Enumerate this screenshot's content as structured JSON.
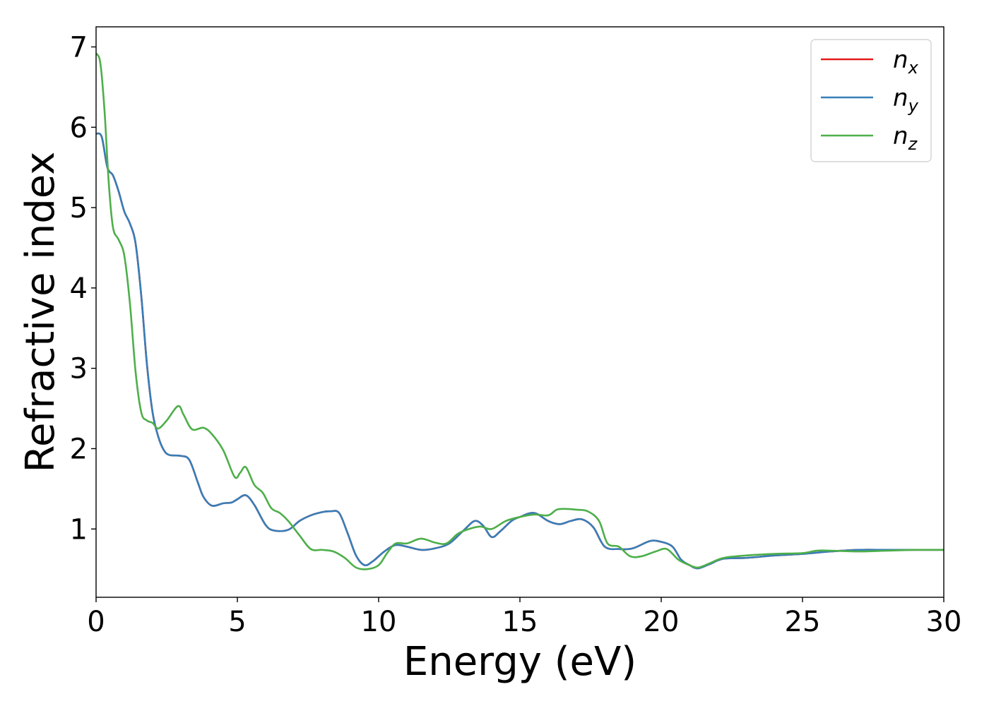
{
  "chart_data": {
    "type": "line",
    "title": "",
    "xlabel": "Energy (eV)",
    "ylabel": "Refractive index",
    "xlim": [
      0,
      30
    ],
    "ylim": [
      0.15,
      7.25
    ],
    "xticks": [
      0,
      5,
      10,
      15,
      20,
      25,
      30
    ],
    "yticks": [
      1,
      2,
      3,
      4,
      5,
      6,
      7
    ],
    "grid": false,
    "legend_position": "top-right",
    "series": [
      {
        "name": "n",
        "subscript": "x",
        "color": "#e41a1c",
        "x": [
          0,
          0.2,
          0.4,
          0.6,
          0.8,
          1.0,
          1.2,
          1.4,
          1.6,
          1.8,
          2.0,
          2.2,
          2.4,
          2.6,
          3.0,
          3.3,
          3.6,
          3.8,
          4.1,
          4.5,
          4.8,
          5.0,
          5.3,
          5.6,
          6.0,
          6.3,
          6.8,
          7.2,
          7.6,
          8.0,
          8.3,
          8.6,
          8.9,
          9.2,
          9.5,
          9.8,
          10.2,
          10.6,
          11.0,
          11.5,
          12.0,
          12.5,
          13.0,
          13.4,
          13.7,
          14.0,
          14.3,
          14.7,
          15.0,
          15.5,
          16.0,
          16.4,
          16.8,
          17.2,
          17.6,
          18.0,
          18.5,
          19.0,
          19.6,
          20.0,
          20.4,
          20.7,
          21.0,
          21.3,
          21.7,
          22.2,
          23.0,
          24.0,
          25.0,
          26.0,
          27.0,
          28.0,
          29.0,
          30.0
        ],
        "y": [
          5.92,
          5.88,
          5.5,
          5.4,
          5.2,
          4.95,
          4.8,
          4.55,
          3.9,
          3.05,
          2.45,
          2.15,
          1.98,
          1.92,
          1.91,
          1.86,
          1.58,
          1.4,
          1.29,
          1.32,
          1.33,
          1.37,
          1.42,
          1.3,
          1.05,
          0.98,
          0.99,
          1.1,
          1.17,
          1.21,
          1.22,
          1.2,
          0.95,
          0.67,
          0.55,
          0.6,
          0.72,
          0.8,
          0.78,
          0.74,
          0.76,
          0.82,
          0.98,
          1.1,
          1.04,
          0.9,
          0.97,
          1.1,
          1.15,
          1.2,
          1.1,
          1.06,
          1.1,
          1.12,
          1.02,
          0.78,
          0.75,
          0.76,
          0.85,
          0.84,
          0.78,
          0.62,
          0.55,
          0.51,
          0.56,
          0.63,
          0.64,
          0.67,
          0.69,
          0.72,
          0.74,
          0.74,
          0.74,
          0.74
        ]
      },
      {
        "name": "n",
        "subscript": "y",
        "color": "#377eb8",
        "x": [
          0,
          0.2,
          0.4,
          0.6,
          0.8,
          1.0,
          1.2,
          1.4,
          1.6,
          1.8,
          2.0,
          2.2,
          2.4,
          2.6,
          3.0,
          3.3,
          3.6,
          3.8,
          4.1,
          4.5,
          4.8,
          5.0,
          5.3,
          5.6,
          6.0,
          6.3,
          6.8,
          7.2,
          7.6,
          8.0,
          8.3,
          8.6,
          8.9,
          9.2,
          9.5,
          9.8,
          10.2,
          10.6,
          11.0,
          11.5,
          12.0,
          12.5,
          13.0,
          13.4,
          13.7,
          14.0,
          14.3,
          14.7,
          15.0,
          15.5,
          16.0,
          16.4,
          16.8,
          17.2,
          17.6,
          18.0,
          18.5,
          19.0,
          19.6,
          20.0,
          20.4,
          20.7,
          21.0,
          21.3,
          21.7,
          22.2,
          23.0,
          24.0,
          25.0,
          26.0,
          27.0,
          28.0,
          29.0,
          30.0
        ],
        "y": [
          5.92,
          5.88,
          5.5,
          5.4,
          5.2,
          4.95,
          4.8,
          4.55,
          3.9,
          3.05,
          2.45,
          2.15,
          1.98,
          1.92,
          1.91,
          1.86,
          1.58,
          1.4,
          1.29,
          1.32,
          1.33,
          1.37,
          1.42,
          1.3,
          1.05,
          0.98,
          0.99,
          1.1,
          1.17,
          1.21,
          1.22,
          1.2,
          0.95,
          0.67,
          0.55,
          0.6,
          0.72,
          0.8,
          0.78,
          0.74,
          0.76,
          0.82,
          0.98,
          1.1,
          1.04,
          0.9,
          0.97,
          1.1,
          1.15,
          1.2,
          1.1,
          1.06,
          1.1,
          1.12,
          1.02,
          0.78,
          0.75,
          0.76,
          0.85,
          0.84,
          0.78,
          0.62,
          0.55,
          0.51,
          0.56,
          0.63,
          0.64,
          0.67,
          0.69,
          0.72,
          0.74,
          0.74,
          0.74,
          0.74
        ]
      },
      {
        "name": "n",
        "subscript": "z",
        "color": "#4daf4a",
        "x": [
          0,
          0.15,
          0.3,
          0.45,
          0.6,
          0.8,
          1.0,
          1.2,
          1.4,
          1.6,
          1.8,
          2.0,
          2.2,
          2.5,
          2.9,
          3.1,
          3.4,
          3.8,
          4.1,
          4.5,
          4.9,
          5.1,
          5.3,
          5.6,
          5.9,
          6.2,
          6.5,
          6.8,
          7.2,
          7.6,
          8.0,
          8.4,
          8.8,
          9.2,
          9.6,
          10.0,
          10.3,
          10.6,
          11.0,
          11.5,
          12.0,
          12.4,
          12.8,
          13.2,
          13.6,
          14.0,
          14.5,
          15.0,
          15.5,
          16.0,
          16.3,
          16.6,
          17.0,
          17.4,
          17.8,
          18.1,
          18.5,
          18.9,
          19.3,
          19.8,
          20.2,
          20.6,
          21.0,
          21.3,
          21.7,
          22.2,
          23.0,
          24.0,
          25.0,
          25.5,
          26.0,
          27.0,
          28.0,
          29.0,
          30.0
        ],
        "y": [
          6.92,
          6.8,
          6.2,
          5.3,
          4.75,
          4.6,
          4.4,
          3.8,
          2.95,
          2.45,
          2.35,
          2.32,
          2.25,
          2.35,
          2.53,
          2.42,
          2.24,
          2.26,
          2.18,
          1.98,
          1.65,
          1.7,
          1.77,
          1.55,
          1.45,
          1.26,
          1.2,
          1.1,
          0.92,
          0.75,
          0.74,
          0.72,
          0.64,
          0.52,
          0.5,
          0.55,
          0.7,
          0.82,
          0.82,
          0.88,
          0.83,
          0.82,
          0.94,
          1.0,
          1.03,
          1.0,
          1.1,
          1.15,
          1.18,
          1.17,
          1.24,
          1.25,
          1.24,
          1.22,
          1.1,
          0.82,
          0.78,
          0.66,
          0.66,
          0.72,
          0.75,
          0.62,
          0.55,
          0.52,
          0.57,
          0.64,
          0.67,
          0.69,
          0.7,
          0.73,
          0.73,
          0.72,
          0.73,
          0.74,
          0.74
        ]
      }
    ]
  }
}
